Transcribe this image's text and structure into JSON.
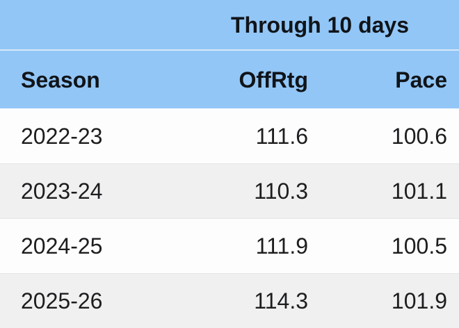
{
  "chart_data": {
    "type": "table",
    "title": "Through 10 days",
    "group_header": "Through 10 days",
    "columns": [
      "Season",
      "OffRtg",
      "Pace"
    ],
    "rows": [
      [
        "2022-23",
        111.6,
        100.6
      ],
      [
        "2023-24",
        110.3,
        101.1
      ],
      [
        "2024-25",
        111.9,
        100.5
      ],
      [
        "2025-26",
        114.3,
        101.9
      ]
    ]
  },
  "colors": {
    "header_bg": "#92C6F6",
    "header_divider": "#D7E8F8",
    "header_text": "#101419",
    "text": "#1C1D1F",
    "row_bg": "#FDFDFD",
    "row_alt_bg": "#F0F0F1",
    "row_divider": "#E4E5E8"
  }
}
